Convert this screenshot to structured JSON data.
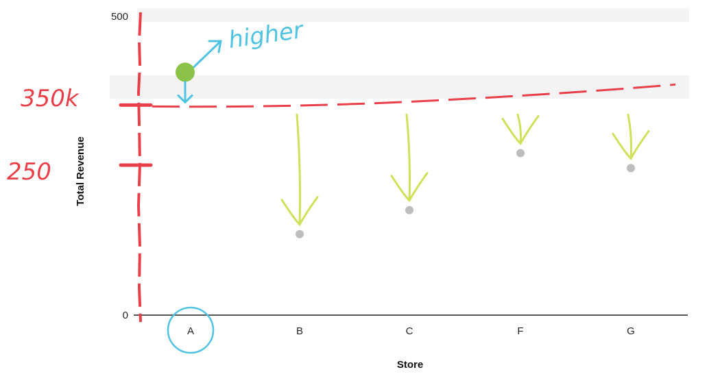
{
  "chart_data": {
    "type": "scatter",
    "xlabel": "Store",
    "ylabel": "Total Revenue",
    "ylim": [
      0,
      500
    ],
    "y_ticks": [
      "0",
      "500"
    ],
    "categories": [
      "A",
      "B",
      "C",
      "F",
      "G"
    ],
    "values": [
      350,
      135,
      175,
      270,
      245
    ],
    "grid": false,
    "annotations": {
      "handwritten_y_labels": [
        {
          "text": "350k",
          "value": 350
        },
        {
          "text": "250",
          "value": 250
        }
      ],
      "note_text": "higher",
      "highlighted_category": "A",
      "line_color": "#e8404a",
      "arrow_color": "#cfe05a",
      "note_color": "#4fc3e0",
      "point_color": "#bdbdbd"
    }
  }
}
